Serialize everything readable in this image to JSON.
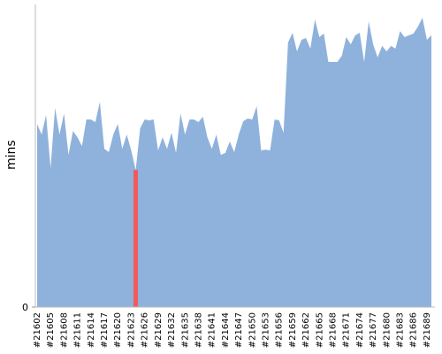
{
  "chart_data": {
    "type": "area",
    "y_label": "mins",
    "categories": [
      "#21602",
      null,
      null,
      "#21605",
      null,
      null,
      "#21608",
      null,
      null,
      "#21611",
      null,
      null,
      "#21614",
      null,
      null,
      "#21617",
      null,
      null,
      "#21620",
      null,
      null,
      "#21623",
      null,
      null,
      "#21626",
      null,
      null,
      "#21629",
      null,
      null,
      "#21632",
      null,
      null,
      "#21635",
      null,
      null,
      "#21638",
      null,
      null,
      "#21641",
      null,
      null,
      "#21644",
      null,
      null,
      "#21647",
      null,
      null,
      "#21650",
      null,
      null,
      "#21653",
      null,
      null,
      "#21656",
      null,
      null,
      "#21659",
      null,
      null,
      "#21662",
      null,
      null,
      "#21665",
      null,
      null,
      "#21668",
      null,
      null,
      "#21671",
      null,
      null,
      "#21674",
      null,
      null,
      "#21677",
      null,
      null,
      "#21680",
      null,
      null,
      "#21683",
      null,
      null,
      "#21686",
      null,
      null,
      "#21689",
      null
    ],
    "values": [
      60.5,
      57.0,
      63.5,
      45.9,
      65.8,
      57.0,
      64.0,
      50.3,
      58.2,
      56.1,
      53.2,
      62.0,
      62.0,
      61.1,
      67.8,
      52.3,
      51.2,
      57.0,
      60.5,
      52.3,
      57.0,
      51.8,
      45.3,
      59.1,
      62.0,
      61.7,
      62.0,
      51.8,
      56.1,
      52.3,
      57.6,
      50.9,
      64.0,
      57.0,
      62.0,
      62.0,
      61.1,
      62.9,
      56.1,
      52.3,
      57.0,
      50.3,
      50.9,
      54.7,
      51.2,
      57.0,
      61.4,
      62.3,
      62.0,
      66.4,
      51.8,
      52.0,
      51.8,
      62.0,
      61.7,
      57.6,
      87.4,
      90.6,
      84.5,
      88.3,
      88.9,
      85.4,
      95.0,
      89.2,
      90.4,
      81.0,
      81.0,
      81.0,
      83.0,
      89.2,
      86.8,
      89.8,
      90.6,
      81.0,
      94.4,
      86.8,
      82.5,
      86.3,
      84.5,
      86.3,
      85.4,
      91.2,
      89.2,
      89.8,
      90.4,
      92.7,
      95.6,
      88.3,
      89.8
    ],
    "color": "#8fb2dc",
    "highlight": {
      "category_index": 22,
      "color": "#f25a5a"
    },
    "ylim": [
      0,
      100
    ],
    "yticks": [
      0
    ]
  }
}
